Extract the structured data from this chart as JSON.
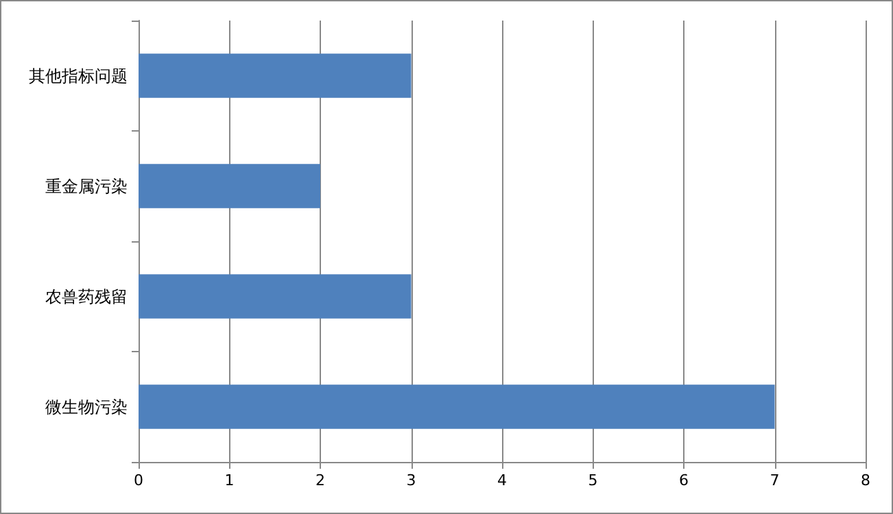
{
  "chart_data": {
    "type": "bar",
    "orientation": "horizontal",
    "categories": [
      "其他指标问题",
      "重金属污染",
      "农兽药残留",
      "微生物污染"
    ],
    "values": [
      3,
      2,
      3,
      7
    ],
    "color": "#4f81bd",
    "xlim": [
      0,
      8
    ],
    "xticks": [
      0,
      1,
      2,
      3,
      4,
      5,
      6,
      7,
      8
    ],
    "grid": "x"
  }
}
